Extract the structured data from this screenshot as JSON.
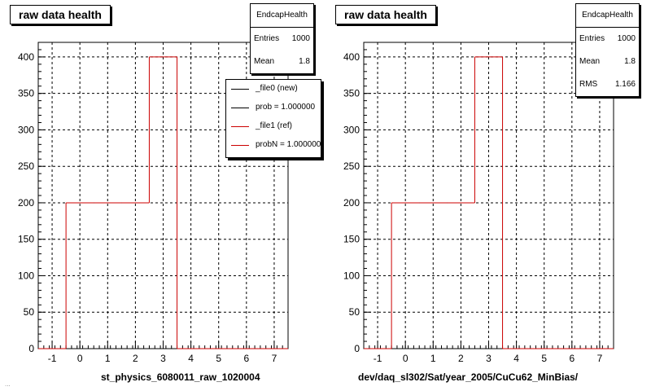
{
  "pads": [
    {
      "title": "raw data health",
      "stats": {
        "name": "EndcapHealth",
        "rows": [
          {
            "k": "Entries",
            "v": "1000"
          },
          {
            "k": "Mean",
            "v": "1.8"
          }
        ]
      },
      "xlabel": "st_physics_6080011_raw_1020004",
      "legend": [
        {
          "label": "_file0 (new)",
          "color": "#000000"
        },
        {
          "label": "prob = 1.000000",
          "color": "#000000"
        },
        {
          "label": "_file1 (ref)",
          "color": "#cc0000"
        },
        {
          "label": "probN = 1.000000",
          "color": "#cc0000"
        }
      ]
    },
    {
      "title": "raw data health",
      "stats": {
        "name": "EndcapHealth",
        "rows": [
          {
            "k": "Entries",
            "v": "1000"
          },
          {
            "k": "Mean",
            "v": "1.8"
          },
          {
            "k": "RMS",
            "v": "1.166"
          }
        ]
      },
      "xlabel": "dev/daq_sl302/Sat/year_2005/CuCu62_MinBias/",
      "legend": []
    }
  ],
  "footer": "...",
  "chart_data": [
    {
      "type": "histogram",
      "title": "raw data health",
      "xlabel": "st_physics_6080011_raw_1020004",
      "ylabel": "",
      "xlim": [
        -1.5,
        7.5
      ],
      "ylim": [
        0,
        420
      ],
      "xticks": [
        -1,
        0,
        1,
        2,
        3,
        4,
        5,
        6,
        7
      ],
      "yticks": [
        0,
        50,
        100,
        150,
        200,
        250,
        300,
        350,
        400
      ],
      "grid": true,
      "bins": [
        {
          "x0": -1.5,
          "x1": -0.5,
          "value": 0
        },
        {
          "x0": -0.5,
          "x1": 0.5,
          "value": 200
        },
        {
          "x0": 0.5,
          "x1": 1.5,
          "value": 200
        },
        {
          "x0": 1.5,
          "x1": 2.5,
          "value": 200
        },
        {
          "x0": 2.5,
          "x1": 3.5,
          "value": 400
        },
        {
          "x0": 3.5,
          "x1": 7.5,
          "value": 0
        }
      ],
      "color": "#cc0000",
      "series": [
        {
          "name": "_file0 (new)",
          "color": "#000000"
        },
        {
          "name": "_file1 (ref)",
          "color": "#cc0000"
        }
      ],
      "legend_position": "top-right"
    },
    {
      "type": "histogram",
      "title": "raw data health",
      "xlabel": "dev/daq_sl302/Sat/year_2005/CuCu62_MinBias/",
      "ylabel": "",
      "xlim": [
        -1.5,
        7.5
      ],
      "ylim": [
        0,
        420
      ],
      "xticks": [
        -1,
        0,
        1,
        2,
        3,
        4,
        5,
        6,
        7
      ],
      "yticks": [
        0,
        50,
        100,
        150,
        200,
        250,
        300,
        350,
        400
      ],
      "grid": true,
      "bins": [
        {
          "x0": -1.5,
          "x1": -0.5,
          "value": 0
        },
        {
          "x0": -0.5,
          "x1": 0.5,
          "value": 200
        },
        {
          "x0": 0.5,
          "x1": 1.5,
          "value": 200
        },
        {
          "x0": 1.5,
          "x1": 2.5,
          "value": 200
        },
        {
          "x0": 2.5,
          "x1": 3.5,
          "value": 400
        },
        {
          "x0": 3.5,
          "x1": 7.5,
          "value": 0
        }
      ],
      "color": "#cc0000"
    }
  ]
}
